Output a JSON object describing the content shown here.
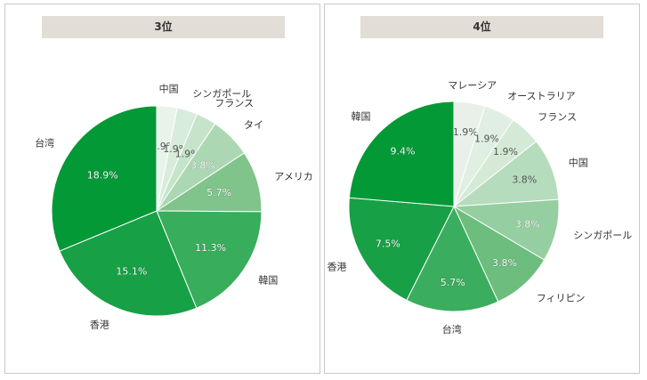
{
  "colors": {
    "panel_title_bg": "#e2ddd6",
    "slice_stroke": "#ffffff",
    "pct_text": "#ffffff",
    "pct_text_light": "#555555",
    "category_text": "#333333"
  },
  "chart_data": [
    {
      "type": "pie",
      "title": "3位",
      "start_angle_deg": 0,
      "direction": "clockwise",
      "slices": [
        {
          "label": "中国",
          "value": 1.9,
          "display": "1.9%",
          "color": "#e8f3ea"
        },
        {
          "label": "シンガポール",
          "value": 1.9,
          "display": "1.9%",
          "color": "#d8ecdb"
        },
        {
          "label": "フランス",
          "value": 1.9,
          "display": "1.9%",
          "color": "#c6e4ca"
        },
        {
          "label": "タイ",
          "value": 3.8,
          "display": "3.8%",
          "color": "#abd7b2"
        },
        {
          "label": "アメリカ",
          "value": 5.7,
          "display": "5.7%",
          "color": "#80c48b"
        },
        {
          "label": "韓国",
          "value": 11.3,
          "display": "11.3%",
          "color": "#38ad5c"
        },
        {
          "label": "香港",
          "value": 15.1,
          "display": "15.1%",
          "color": "#17a046"
        },
        {
          "label": "台湾",
          "value": 18.9,
          "display": "18.9%",
          "color": "#039936"
        }
      ]
    },
    {
      "type": "pie",
      "title": "4位",
      "start_angle_deg": 0,
      "direction": "clockwise",
      "slices": [
        {
          "label": "マレーシア",
          "value": 1.9,
          "display": "1.9%",
          "color": "#e9f0ea"
        },
        {
          "label": "オーストラリア",
          "value": 1.9,
          "display": "1.9%",
          "color": "#e0efe2"
        },
        {
          "label": "フランス",
          "value": 1.9,
          "display": "1.9%",
          "color": "#d4ead7"
        },
        {
          "label": "中国",
          "value": 3.8,
          "display": "3.8%",
          "color": "#b5dcbc"
        },
        {
          "label": "シンガポール",
          "value": 3.8,
          "display": "3.8%",
          "color": "#95cea0"
        },
        {
          "label": "フィリピン",
          "value": 3.8,
          "display": "3.8%",
          "color": "#6cbd7e"
        },
        {
          "label": "台湾",
          "value": 5.7,
          "display": "5.7%",
          "color": "#3aad5e"
        },
        {
          "label": "香港",
          "value": 7.5,
          "display": "7.5%",
          "color": "#17a046"
        },
        {
          "label": "韓国",
          "value": 9.4,
          "display": "9.4%",
          "color": "#039936"
        }
      ]
    }
  ]
}
